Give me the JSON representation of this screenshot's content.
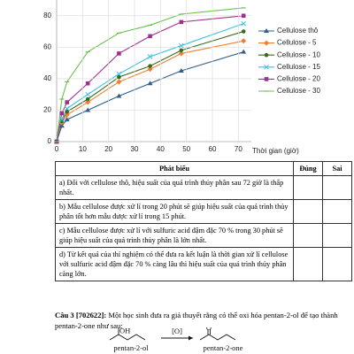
{
  "chart_data": {
    "type": "line",
    "x_label": "Thời gian (giờ)",
    "x": [
      0,
      2,
      4,
      12,
      24,
      36,
      48,
      72
    ],
    "xlim": [
      0,
      75
    ],
    "xticks": [
      0,
      10,
      20,
      30,
      40,
      50,
      60,
      70
    ],
    "ylim": [
      0,
      90
    ],
    "yticks": [
      0,
      20,
      40,
      60,
      80
    ],
    "grid": true,
    "series": [
      {
        "name": "Cellulose thô",
        "color": "#2f5d8c",
        "marker": "triangle",
        "values": [
          0,
          10,
          14,
          20,
          29,
          37,
          45,
          57
        ]
      },
      {
        "name": "Cellulose - 5",
        "color": "#ef7f2f",
        "marker": "diamond",
        "values": [
          0,
          12,
          17,
          25,
          38,
          46,
          56,
          64
        ]
      },
      {
        "name": "Cellulose - 10",
        "color": "#3b6a1f",
        "marker": "circle",
        "values": [
          0,
          13,
          19,
          27,
          41,
          48,
          58,
          70
        ]
      },
      {
        "name": "Cellulose - 15",
        "color": "#3dbfe0",
        "marker": "cross",
        "values": [
          0,
          14,
          21,
          30,
          43,
          54,
          61,
          75
        ]
      },
      {
        "name": "Cellulose - 20",
        "color": "#a0308e",
        "marker": "square",
        "values": [
          0,
          18,
          25,
          37,
          56,
          67,
          76,
          80
        ]
      },
      {
        "name": "Cellulose - 30",
        "color": "#6cc04a",
        "marker": "dash",
        "values": [
          0,
          27,
          38,
          57,
          69,
          74,
          81,
          85
        ]
      }
    ]
  },
  "table": {
    "header": [
      "Phát biểu",
      "Đúng",
      "Sai"
    ],
    "rows": [
      [
        "a) Đối với cellulose thô, hiệu suất của quá trình thủy phân sau 72 giờ là thấp nhất."
      ],
      [
        "b) Mẫu cellulose được xử lí trong 20 phút sẽ giúp hiệu suất của quá trình thủy phân tốt hơn mẫu được xử lí trong 15 phút."
      ],
      [
        "c) Mẫu cellulose được xử lí với sulfuric acid đậm đặc 70 % trong 30 phút sẽ giúp hiệu suất của quá trình thủy phân là lớn nhất."
      ],
      [
        "d) Từ kết quả của thí nghiệm có thể đưa ra kết luận là thời gian xử lí cellulose với sulfuric acid đậm đặc 70 % càng lâu thì hiệu suất của quá trình thủy phân càng lớn."
      ]
    ]
  },
  "question": {
    "label": "Câu 3 [702622]:",
    "text": "Một học sinh đưa ra giả thuyết rằng có thể oxi hóa pentan-2-ol để tạo thành pentan-2-one như sau:"
  },
  "reaction": {
    "reactant": "pentan-2-ol",
    "reactant_group": "OH",
    "reagent": "[O]",
    "product": "pentan-2-one",
    "product_group": "O"
  }
}
